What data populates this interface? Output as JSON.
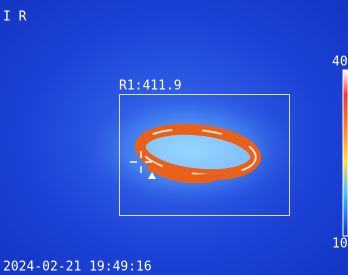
{
  "header": {
    "mode": "I R"
  },
  "roi": {
    "label": "R1:411.9"
  },
  "timestamp": "2024-02-21 19:49:16",
  "scale": {
    "max": "40",
    "min": "10"
  }
}
